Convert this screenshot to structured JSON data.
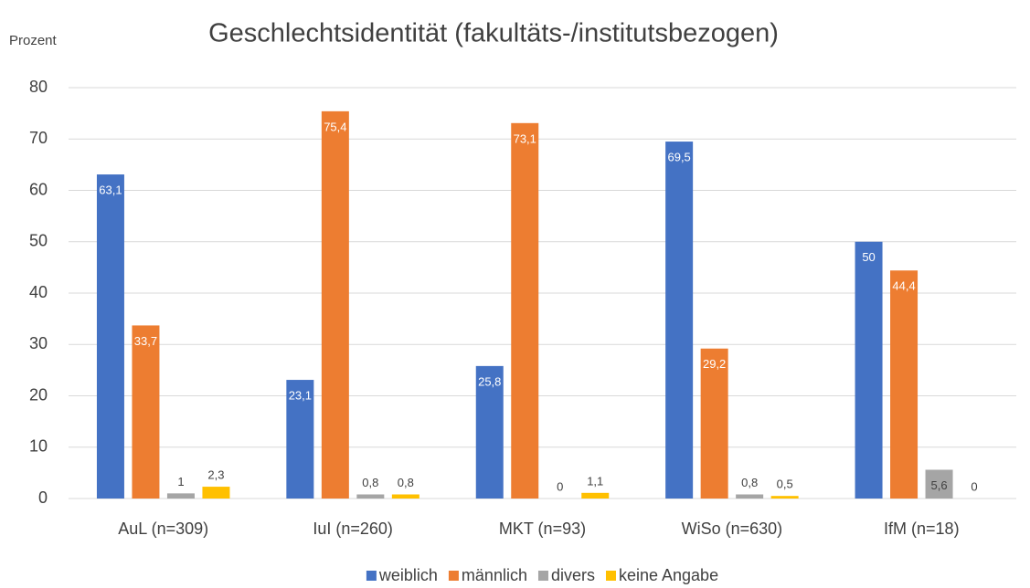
{
  "chart_data": {
    "type": "bar",
    "title": "Geschlechtsidentität (fakultäts-/institutsbezogen)",
    "y_label": "Prozent",
    "categories": [
      "AuL (n=309)",
      "IuI (n=260)",
      "MKT (n=93)",
      "WiSo (n=630)",
      "IfM (n=18)"
    ],
    "series": [
      {
        "name": "weiblich",
        "color": "#4472c4",
        "values": [
          63.1,
          23.1,
          25.8,
          69.5,
          50
        ],
        "value_labels": [
          "63,1",
          "23,1",
          "25,8",
          "69,5",
          "50"
        ]
      },
      {
        "name": "männlich",
        "color": "#ed7d31",
        "values": [
          33.7,
          75.4,
          73.1,
          29.2,
          44.4
        ],
        "value_labels": [
          "33,7",
          "75,4",
          "73,1",
          "29,2",
          "44,4"
        ]
      },
      {
        "name": "divers",
        "color": "#a5a5a5",
        "values": [
          1,
          0.8,
          0,
          0.8,
          5.6
        ],
        "value_labels": [
          "1",
          "0,8",
          "0",
          "0,8",
          "5,6"
        ]
      },
      {
        "name": "keine Angabe",
        "color": "#ffc000",
        "values": [
          2.3,
          0.8,
          1.1,
          0.5,
          0
        ],
        "value_labels": [
          "2,3",
          "0,8",
          "1,1",
          "0,5",
          "0"
        ]
      }
    ],
    "ylim": [
      0,
      80
    ],
    "yticks": [
      0,
      10,
      20,
      30,
      40,
      50,
      60,
      70,
      80
    ],
    "grid": true,
    "legend": "bottom"
  }
}
